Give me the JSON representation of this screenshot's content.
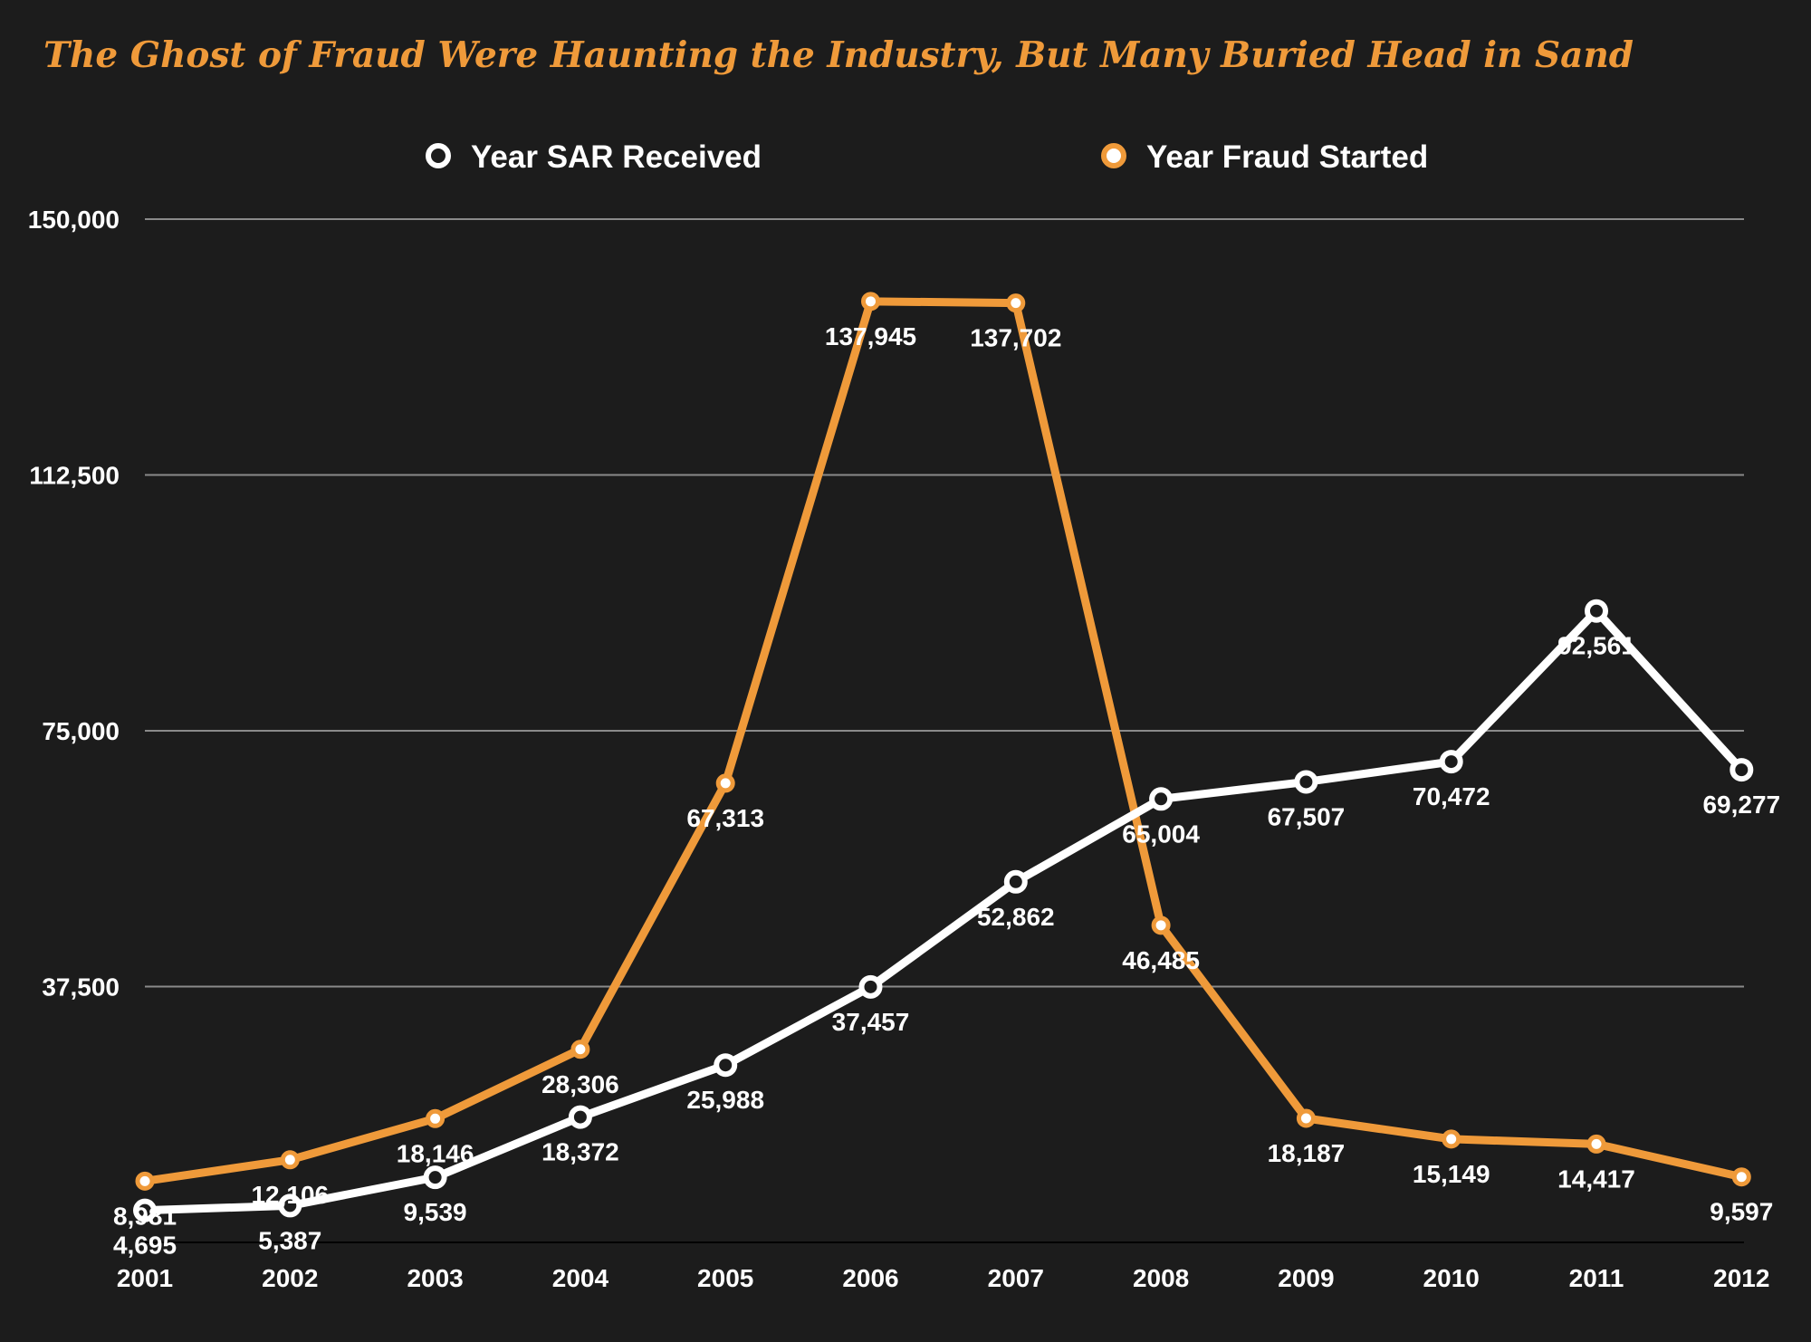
{
  "colors": {
    "background": "#1c1c1c",
    "accent": "#ef9a3a",
    "sar_series": "#ffffff",
    "fraud_series": "#ef9a3a",
    "grid": "#8a8a8a"
  },
  "chart_data": {
    "type": "line",
    "title": "The Ghost of Fraud Were Haunting the Industry, But Many Buried Head in Sand",
    "xlabel": "",
    "ylabel": "",
    "categories": [
      "2001",
      "2002",
      "2003",
      "2004",
      "2005",
      "2006",
      "2007",
      "2008",
      "2009",
      "2010",
      "2011",
      "2012"
    ],
    "y_ticks": [
      {
        "value": 37500,
        "label": "37,500"
      },
      {
        "value": 75000,
        "label": "75,000"
      },
      {
        "value": 112500,
        "label": "112,500"
      },
      {
        "value": 150000,
        "label": "150,000"
      }
    ],
    "ylim": [
      0,
      150000
    ],
    "grid": true,
    "legend_position": "top",
    "series": [
      {
        "name": "Year SAR Received",
        "color": "#ffffff",
        "values": [
          4695,
          5387,
          9539,
          18372,
          25988,
          37457,
          52862,
          65004,
          67507,
          70472,
          92561,
          69277
        ],
        "labels": [
          "4,695",
          "5,387",
          "9,539",
          "18,372",
          "25,988",
          "37,457",
          "52,862",
          "65,004",
          "67,507",
          "70,472",
          "92,561",
          "69,277"
        ]
      },
      {
        "name": "Year Fraud Started",
        "color": "#ef9a3a",
        "values": [
          8981,
          12106,
          18146,
          28306,
          67313,
          137945,
          137702,
          46485,
          18187,
          15149,
          14417,
          9597
        ],
        "labels": [
          "8,981",
          "12,106",
          "18,146",
          "28,306",
          "67,313",
          "137,945",
          "137,702",
          "46,485",
          "18,187",
          "15,149",
          "14,417",
          "9,597"
        ]
      }
    ]
  }
}
